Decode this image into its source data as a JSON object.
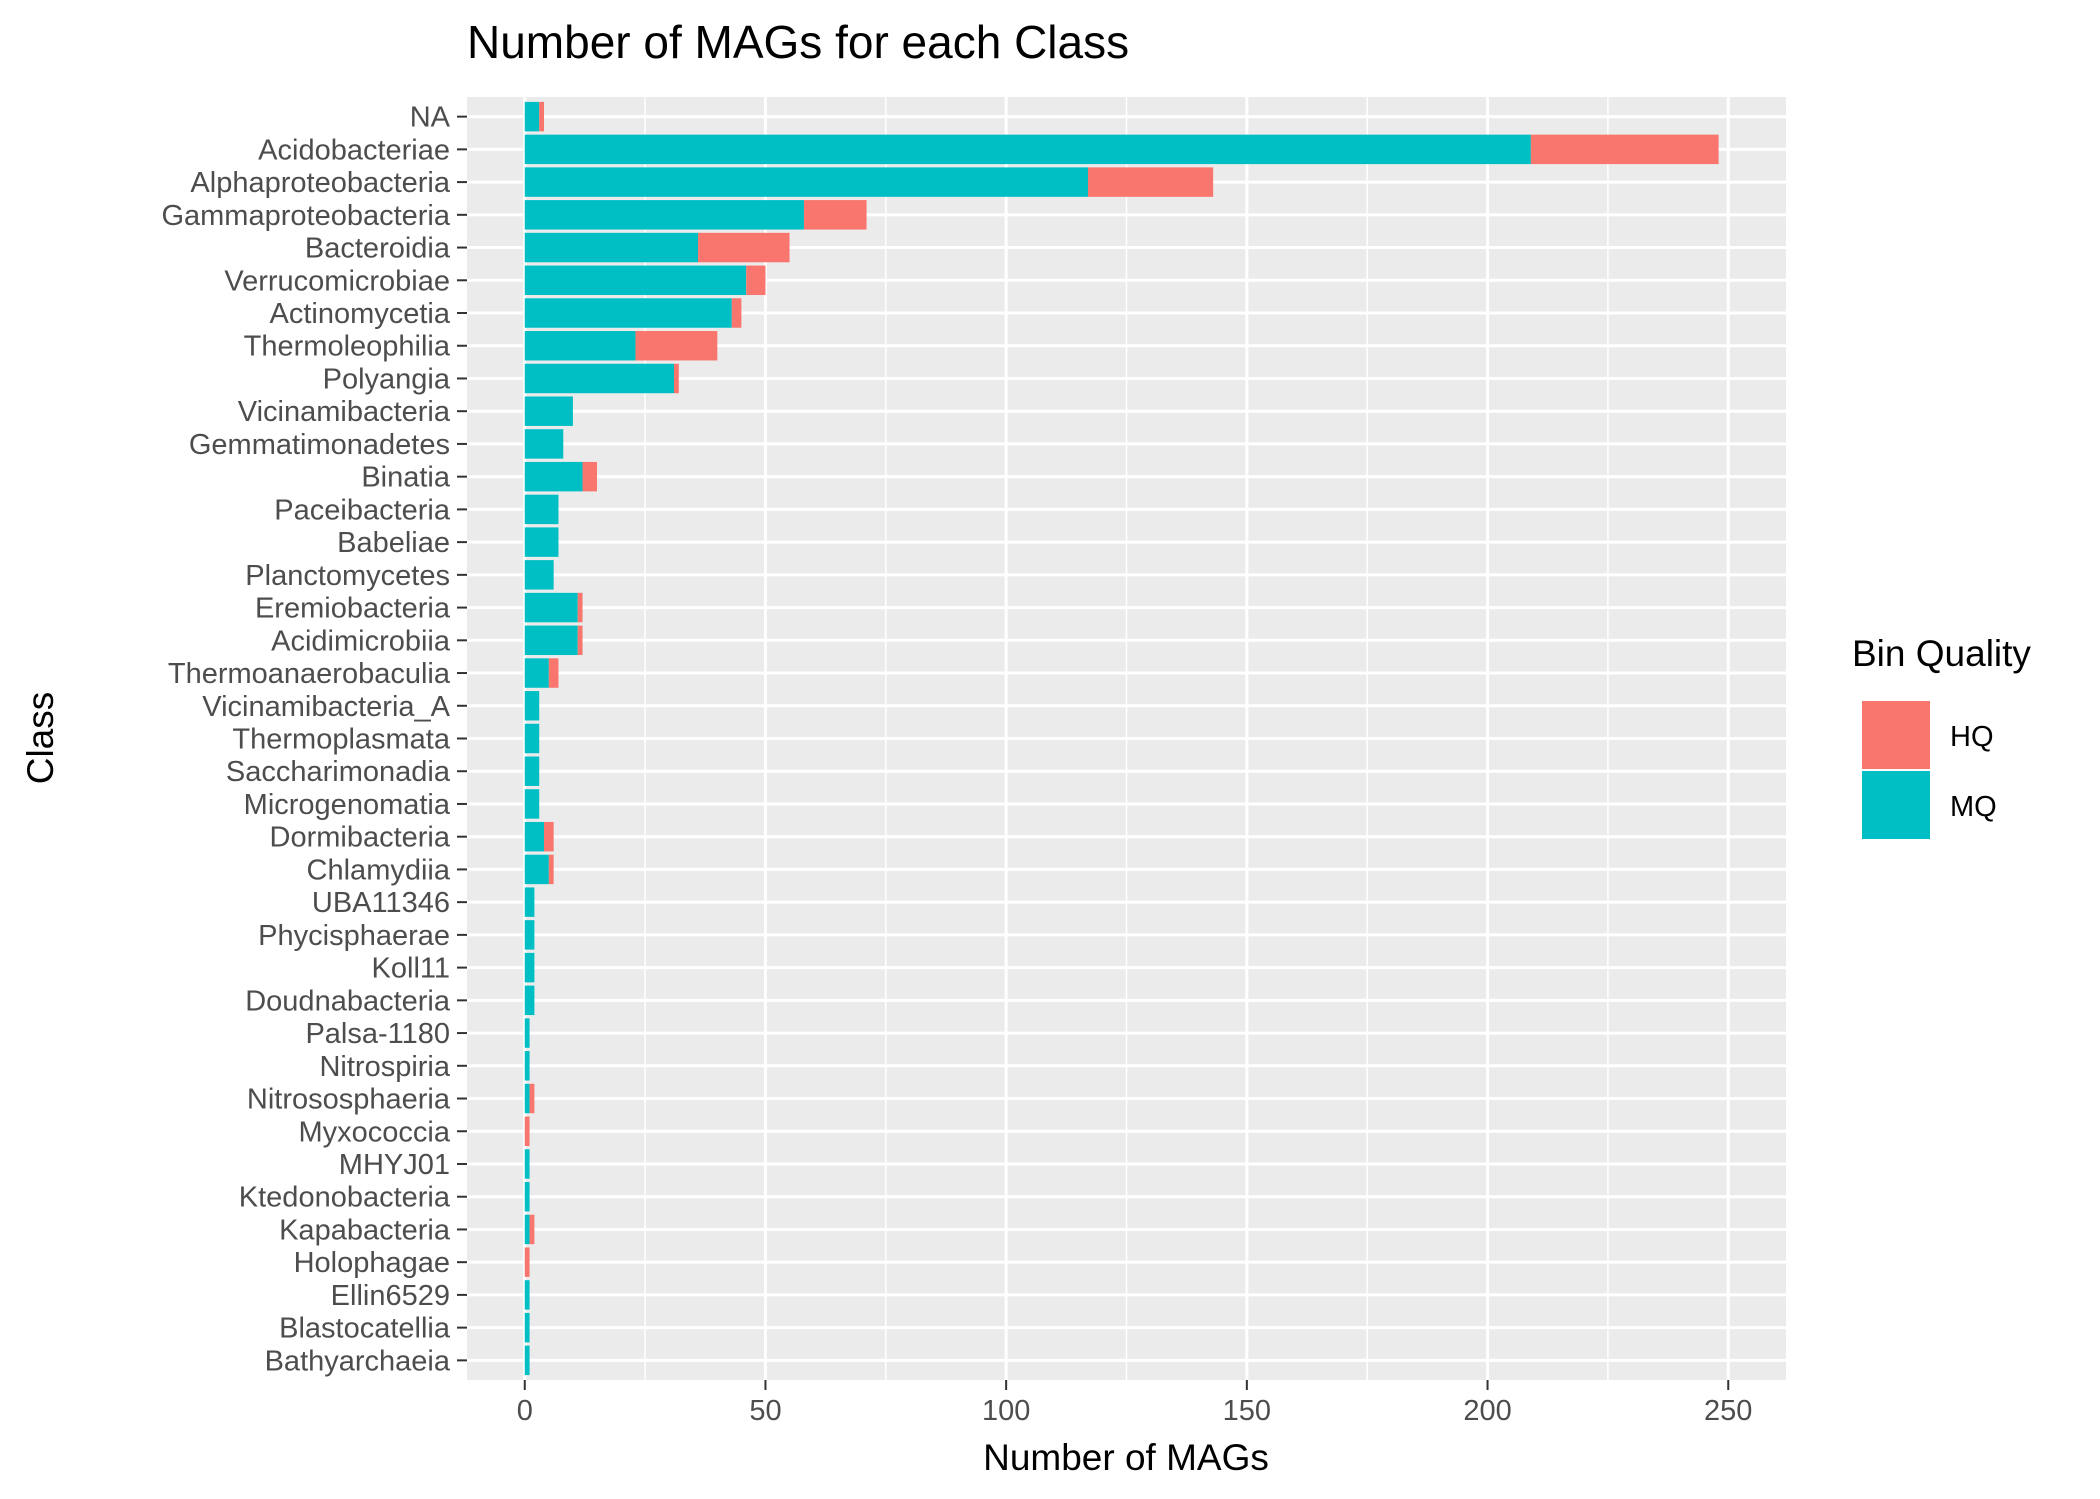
{
  "chart_data": {
    "type": "bar",
    "orientation": "horizontal",
    "stacked": true,
    "title": "Number of MAGs for each Class",
    "xlabel": "Number of MAGs",
    "ylabel": "Class",
    "xlim": [
      -12,
      262
    ],
    "x_ticks": [
      "0",
      "50",
      "100",
      "150",
      "200",
      "250"
    ],
    "grid": true,
    "legend_position": "right",
    "legend_title": "Bin Quality",
    "categories": [
      "NA",
      "Acidobacteriae",
      "Alphaproteobacteria",
      "Gammaproteobacteria",
      "Bacteroidia",
      "Verrucomicrobiae",
      "Actinomycetia",
      "Thermoleophilia",
      "Polyangia",
      "Vicinamibacteria",
      "Gemmatimonadetes",
      "Binatia",
      "Paceibacteria",
      "Babeliae",
      "Planctomycetes",
      "Eremiobacteria",
      "Acidimicrobiia",
      "Thermoanaerobaculia",
      "Vicinamibacteria_A",
      "Thermoplasmata",
      "Saccharimonadia",
      "Microgenomatia",
      "Dormibacteria",
      "Chlamydiia",
      "UBA11346",
      "Phycisphaerae",
      "Koll11",
      "Doudnabacteria",
      "Palsa-1180",
      "Nitrospiria",
      "Nitrososphaeria",
      "Myxococcia",
      "MHYJ01",
      "Ktedonobacteria",
      "Kapabacteria",
      "Holophagae",
      "Ellin6529",
      "Blastocatellia",
      "Bathyarchaeia"
    ],
    "series": [
      {
        "name": "MQ",
        "color": "#00BFC4",
        "values": [
          3,
          209,
          117,
          58,
          36,
          46,
          43,
          23,
          31,
          10,
          8,
          12,
          7,
          7,
          6,
          11,
          11,
          5,
          3,
          3,
          3,
          3,
          4,
          5,
          2,
          2,
          2,
          2,
          1,
          1,
          1,
          0,
          1,
          1,
          1,
          0,
          1,
          1,
          1
        ]
      },
      {
        "name": "HQ",
        "color": "#F8766D",
        "values": [
          1,
          39,
          26,
          13,
          19,
          4,
          2,
          17,
          1,
          0,
          0,
          3,
          0,
          0,
          0,
          1,
          1,
          2,
          0,
          0,
          0,
          0,
          2,
          1,
          0,
          0,
          0,
          0,
          0,
          0,
          1,
          1,
          0,
          0,
          1,
          1,
          0,
          0,
          0
        ]
      }
    ],
    "legend_order": [
      "HQ",
      "MQ"
    ],
    "colors": {
      "panel_background": "#EBEBEB",
      "grid": "#FFFFFF",
      "hq": "#F8766D",
      "mq": "#00BFC4"
    }
  }
}
